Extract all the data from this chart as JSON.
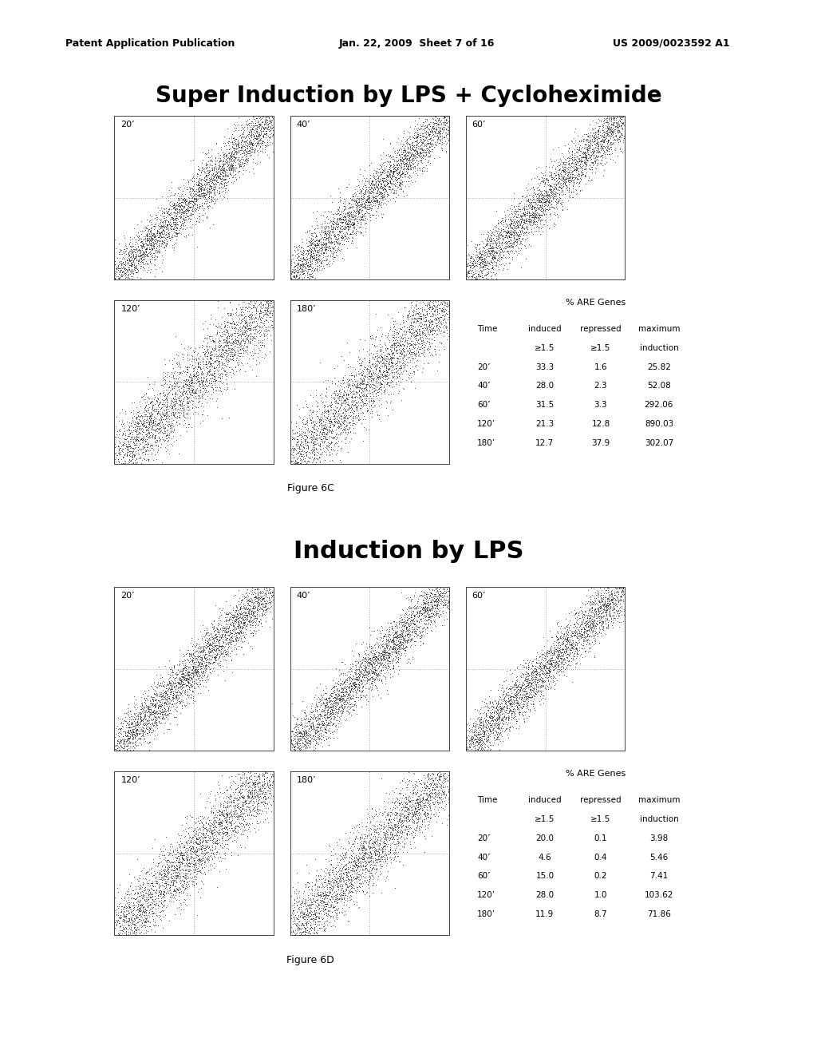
{
  "title1": "Super Induction by LPS + Cycloheximide",
  "title2": "Induction by LPS",
  "figure_label1": "Figure 6C",
  "figure_label2": "Figure 6D",
  "header": "Patent Application Publication",
  "date": "Jan. 22, 2009  Sheet 7 of 16",
  "patent": "US 2009/0023592 A1",
  "subplot_labels": [
    "20’",
    "40’",
    "60’",
    "120’",
    "180’"
  ],
  "table1_header": "% ARE Genes",
  "table1_data": [
    [
      "20’",
      "33.3",
      "1.6",
      "25.82"
    ],
    [
      "40’",
      "28.0",
      "2.3",
      "52.08"
    ],
    [
      "60’",
      "31.5",
      "3.3",
      "292.06"
    ],
    [
      "120’",
      "21.3",
      "12.8",
      "890.03"
    ],
    [
      "180’",
      "12.7",
      "37.9",
      "302.07"
    ]
  ],
  "table2_header": "% ARE Genes",
  "table2_data": [
    [
      "20’",
      "20.0",
      "0.1",
      "3.98"
    ],
    [
      "40’",
      "4.6",
      "0.4",
      "5.46"
    ],
    [
      "60’",
      "15.0",
      "0.2",
      "7.41"
    ],
    [
      "120’",
      "28.0",
      "1.0",
      "103.62"
    ],
    [
      "180’",
      "11.9",
      "8.7",
      "71.86"
    ]
  ],
  "bg_color": "#ffffff",
  "scatter_color": "#111111",
  "dot_line_color": "#aaaaaa",
  "title1_fontsize": 20,
  "title2_fontsize": 22,
  "header_fontsize": 9,
  "label_fontsize": 8,
  "table_fontsize": 7.5,
  "fig_label_fontsize": 9
}
